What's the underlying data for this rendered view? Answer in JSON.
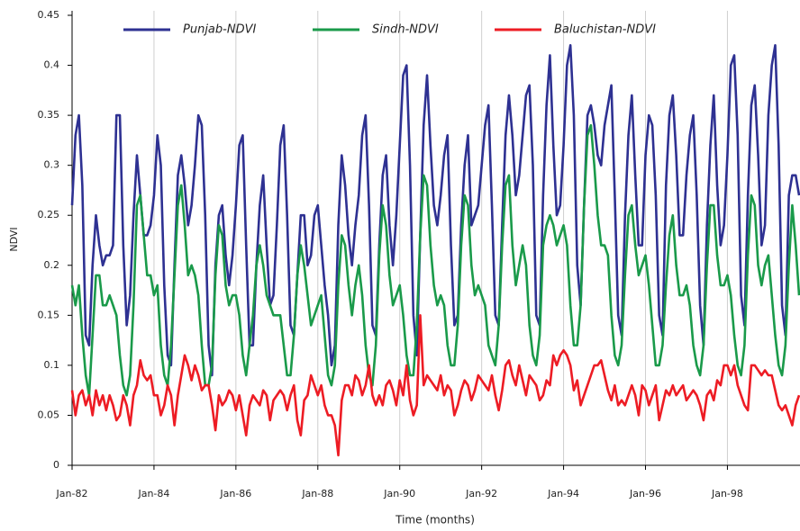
{
  "chart_data": {
    "type": "line",
    "y_label": "NDVI",
    "x_label": "Time (months)",
    "x": [
      "1982-01",
      "1982-02",
      "1982-03",
      "1982-04",
      "1982-05",
      "1982-06",
      "1982-07",
      "1982-08",
      "1982-09",
      "1982-10",
      "1982-11",
      "1982-12",
      "1983-01",
      "1983-02",
      "1983-03",
      "1983-04",
      "1983-05",
      "1983-06",
      "1983-07",
      "1983-08",
      "1983-09",
      "1983-10",
      "1983-11",
      "1983-12",
      "1984-01",
      "1984-02",
      "1984-03",
      "1984-04",
      "1984-05",
      "1984-06",
      "1984-07",
      "1984-08",
      "1984-09",
      "1984-10",
      "1984-11",
      "1984-12",
      "1985-01",
      "1985-02",
      "1985-03",
      "1985-04",
      "1985-05",
      "1985-06",
      "1985-07",
      "1985-08",
      "1985-09",
      "1985-10",
      "1985-11",
      "1985-12",
      "1986-01",
      "1986-02",
      "1986-03",
      "1986-04",
      "1986-05",
      "1986-06",
      "1986-07",
      "1986-08",
      "1986-09",
      "1986-10",
      "1986-11",
      "1986-12",
      "1987-01",
      "1987-02",
      "1987-03",
      "1987-04",
      "1987-05",
      "1987-06",
      "1987-07",
      "1987-08",
      "1987-09",
      "1987-10",
      "1987-11",
      "1987-12",
      "1988-01",
      "1988-02",
      "1988-03",
      "1988-04",
      "1988-05",
      "1988-06",
      "1988-07",
      "1988-08",
      "1988-09",
      "1988-10",
      "1988-11",
      "1988-12",
      "1989-01",
      "1989-02",
      "1989-03",
      "1989-04",
      "1989-05",
      "1989-06",
      "1989-07",
      "1989-08",
      "1989-09",
      "1989-10",
      "1989-11",
      "1989-12",
      "1990-01",
      "1990-02",
      "1990-03",
      "1990-04",
      "1990-05",
      "1990-06",
      "1990-07",
      "1990-08",
      "1990-09",
      "1990-10",
      "1990-11",
      "1990-12",
      "1991-01",
      "1991-02",
      "1991-03",
      "1991-04",
      "1991-05",
      "1991-06",
      "1991-07",
      "1991-08",
      "1991-09",
      "1991-10",
      "1991-11",
      "1991-12",
      "1992-01",
      "1992-02",
      "1992-03",
      "1992-04",
      "1992-05",
      "1992-06",
      "1992-07",
      "1992-08",
      "1992-09",
      "1992-10",
      "1992-11",
      "1992-12",
      "1993-01",
      "1993-02",
      "1993-03",
      "1993-04",
      "1993-05",
      "1993-06",
      "1993-07",
      "1993-08",
      "1993-09",
      "1993-10",
      "1993-11",
      "1993-12",
      "1994-01",
      "1994-02",
      "1994-03",
      "1994-04",
      "1994-05",
      "1994-06",
      "1994-07",
      "1994-08",
      "1994-09",
      "1994-10",
      "1994-11",
      "1994-12",
      "1995-01",
      "1995-02",
      "1995-03",
      "1995-04",
      "1995-05",
      "1995-06",
      "1995-07",
      "1995-08",
      "1995-09",
      "1995-10",
      "1995-11",
      "1995-12",
      "1996-01",
      "1996-02",
      "1996-03",
      "1996-04",
      "1996-05",
      "1996-06",
      "1996-07",
      "1996-08",
      "1996-09",
      "1996-10",
      "1996-11",
      "1996-12",
      "1997-01",
      "1997-02",
      "1997-03",
      "1997-04",
      "1997-05",
      "1997-06",
      "1997-07",
      "1997-08",
      "1997-09",
      "1997-10",
      "1997-11",
      "1997-12",
      "1998-01",
      "1998-02",
      "1998-03",
      "1998-04",
      "1998-05",
      "1998-06",
      "1998-07",
      "1998-08",
      "1998-09",
      "1998-10",
      "1998-11",
      "1998-12",
      "1999-01",
      "1999-02",
      "1999-03",
      "1999-04",
      "1999-05",
      "1999-06",
      "1999-07",
      "1999-08",
      "1999-09",
      "1999-10"
    ],
    "series": [
      {
        "name": "Punjab-NDVI",
        "color": "#2e3192",
        "values": [
          0.26,
          0.33,
          0.35,
          0.28,
          0.13,
          0.12,
          0.2,
          0.25,
          0.22,
          0.2,
          0.21,
          0.21,
          0.22,
          0.35,
          0.35,
          0.22,
          0.14,
          0.17,
          0.25,
          0.31,
          0.27,
          0.23,
          0.23,
          0.24,
          0.27,
          0.33,
          0.3,
          0.18,
          0.11,
          0.1,
          0.2,
          0.29,
          0.31,
          0.28,
          0.24,
          0.26,
          0.3,
          0.35,
          0.34,
          0.25,
          0.12,
          0.09,
          0.2,
          0.25,
          0.26,
          0.21,
          0.18,
          0.21,
          0.26,
          0.32,
          0.33,
          0.22,
          0.12,
          0.12,
          0.2,
          0.26,
          0.29,
          0.22,
          0.16,
          0.17,
          0.24,
          0.32,
          0.34,
          0.25,
          0.14,
          0.13,
          0.19,
          0.25,
          0.25,
          0.2,
          0.21,
          0.25,
          0.26,
          0.22,
          0.18,
          0.15,
          0.1,
          0.12,
          0.24,
          0.31,
          0.28,
          0.23,
          0.2,
          0.24,
          0.27,
          0.33,
          0.35,
          0.26,
          0.14,
          0.13,
          0.22,
          0.29,
          0.31,
          0.24,
          0.2,
          0.25,
          0.32,
          0.39,
          0.4,
          0.3,
          0.15,
          0.11,
          0.23,
          0.34,
          0.39,
          0.32,
          0.26,
          0.24,
          0.27,
          0.31,
          0.33,
          0.22,
          0.14,
          0.15,
          0.24,
          0.3,
          0.33,
          0.24,
          0.25,
          0.26,
          0.3,
          0.34,
          0.36,
          0.26,
          0.15,
          0.14,
          0.24,
          0.33,
          0.37,
          0.33,
          0.27,
          0.29,
          0.33,
          0.37,
          0.38,
          0.3,
          0.15,
          0.14,
          0.27,
          0.36,
          0.41,
          0.32,
          0.25,
          0.26,
          0.32,
          0.4,
          0.42,
          0.35,
          0.2,
          0.16,
          0.26,
          0.35,
          0.36,
          0.34,
          0.31,
          0.3,
          0.34,
          0.36,
          0.38,
          0.27,
          0.15,
          0.13,
          0.25,
          0.33,
          0.37,
          0.29,
          0.22,
          0.22,
          0.31,
          0.35,
          0.34,
          0.27,
          0.15,
          0.13,
          0.28,
          0.35,
          0.37,
          0.31,
          0.23,
          0.23,
          0.29,
          0.33,
          0.35,
          0.27,
          0.16,
          0.12,
          0.24,
          0.32,
          0.37,
          0.28,
          0.22,
          0.24,
          0.31,
          0.4,
          0.41,
          0.33,
          0.17,
          0.14,
          0.27,
          0.36,
          0.38,
          0.31,
          0.22,
          0.24,
          0.35,
          0.4,
          0.42,
          0.32,
          0.16,
          0.13,
          0.27,
          0.29,
          0.29,
          0.27
        ]
      },
      {
        "name": "Sindh-NDVI",
        "color": "#1a9a4a",
        "values": [
          0.18,
          0.16,
          0.18,
          0.13,
          0.09,
          0.07,
          0.13,
          0.19,
          0.19,
          0.16,
          0.16,
          0.17,
          0.16,
          0.15,
          0.11,
          0.08,
          0.07,
          0.09,
          0.16,
          0.26,
          0.27,
          0.23,
          0.19,
          0.19,
          0.17,
          0.18,
          0.12,
          0.09,
          0.08,
          0.12,
          0.19,
          0.26,
          0.28,
          0.24,
          0.19,
          0.2,
          0.19,
          0.17,
          0.12,
          0.08,
          0.08,
          0.1,
          0.19,
          0.24,
          0.23,
          0.18,
          0.16,
          0.17,
          0.17,
          0.15,
          0.11,
          0.09,
          0.12,
          0.15,
          0.2,
          0.22,
          0.2,
          0.17,
          0.16,
          0.15,
          0.15,
          0.15,
          0.12,
          0.09,
          0.09,
          0.13,
          0.19,
          0.22,
          0.2,
          0.17,
          0.14,
          0.15,
          0.16,
          0.17,
          0.13,
          0.09,
          0.08,
          0.1,
          0.18,
          0.23,
          0.22,
          0.18,
          0.15,
          0.18,
          0.2,
          0.17,
          0.12,
          0.09,
          0.08,
          0.12,
          0.21,
          0.26,
          0.24,
          0.19,
          0.16,
          0.17,
          0.18,
          0.15,
          0.11,
          0.09,
          0.09,
          0.14,
          0.23,
          0.29,
          0.28,
          0.22,
          0.18,
          0.16,
          0.17,
          0.16,
          0.12,
          0.1,
          0.1,
          0.14,
          0.22,
          0.27,
          0.26,
          0.2,
          0.17,
          0.18,
          0.17,
          0.16,
          0.12,
          0.11,
          0.1,
          0.14,
          0.22,
          0.28,
          0.29,
          0.22,
          0.18,
          0.2,
          0.22,
          0.2,
          0.14,
          0.11,
          0.1,
          0.13,
          0.22,
          0.24,
          0.25,
          0.24,
          0.22,
          0.23,
          0.24,
          0.22,
          0.16,
          0.12,
          0.12,
          0.16,
          0.26,
          0.33,
          0.34,
          0.3,
          0.25,
          0.22,
          0.22,
          0.21,
          0.15,
          0.11,
          0.1,
          0.12,
          0.19,
          0.25,
          0.26,
          0.22,
          0.19,
          0.2,
          0.21,
          0.18,
          0.14,
          0.1,
          0.1,
          0.12,
          0.18,
          0.23,
          0.25,
          0.2,
          0.17,
          0.17,
          0.18,
          0.16,
          0.12,
          0.1,
          0.09,
          0.12,
          0.2,
          0.26,
          0.26,
          0.21,
          0.18,
          0.18,
          0.19,
          0.17,
          0.13,
          0.1,
          0.09,
          0.12,
          0.21,
          0.27,
          0.26,
          0.2,
          0.18,
          0.2,
          0.21,
          0.17,
          0.13,
          0.1,
          0.09,
          0.12,
          0.2,
          0.26,
          0.22,
          0.17
        ]
      },
      {
        "name": "Baluchistan-NDVI",
        "color": "#ed1c24",
        "values": [
          0.075,
          0.05,
          0.07,
          0.075,
          0.06,
          0.07,
          0.05,
          0.075,
          0.06,
          0.07,
          0.055,
          0.07,
          0.06,
          0.045,
          0.05,
          0.07,
          0.06,
          0.04,
          0.07,
          0.08,
          0.105,
          0.09,
          0.085,
          0.09,
          0.07,
          0.07,
          0.05,
          0.06,
          0.08,
          0.07,
          0.04,
          0.07,
          0.09,
          0.11,
          0.1,
          0.085,
          0.1,
          0.09,
          0.075,
          0.08,
          0.08,
          0.06,
          0.035,
          0.07,
          0.06,
          0.065,
          0.075,
          0.07,
          0.055,
          0.07,
          0.05,
          0.03,
          0.06,
          0.07,
          0.065,
          0.06,
          0.075,
          0.07,
          0.045,
          0.065,
          0.07,
          0.075,
          0.07,
          0.055,
          0.07,
          0.08,
          0.045,
          0.03,
          0.065,
          0.07,
          0.09,
          0.08,
          0.07,
          0.08,
          0.06,
          0.05,
          0.05,
          0.04,
          0.01,
          0.065,
          0.08,
          0.08,
          0.07,
          0.09,
          0.085,
          0.07,
          0.08,
          0.1,
          0.07,
          0.06,
          0.07,
          0.06,
          0.08,
          0.085,
          0.075,
          0.06,
          0.085,
          0.07,
          0.1,
          0.065,
          0.05,
          0.06,
          0.15,
          0.08,
          0.09,
          0.085,
          0.08,
          0.075,
          0.09,
          0.07,
          0.08,
          0.075,
          0.05,
          0.06,
          0.075,
          0.085,
          0.08,
          0.065,
          0.075,
          0.09,
          0.085,
          0.08,
          0.075,
          0.09,
          0.07,
          0.055,
          0.075,
          0.1,
          0.105,
          0.09,
          0.08,
          0.1,
          0.085,
          0.07,
          0.09,
          0.085,
          0.08,
          0.065,
          0.07,
          0.085,
          0.08,
          0.11,
          0.1,
          0.11,
          0.115,
          0.11,
          0.1,
          0.075,
          0.085,
          0.06,
          0.07,
          0.08,
          0.09,
          0.1,
          0.1,
          0.105,
          0.09,
          0.075,
          0.065,
          0.08,
          0.06,
          0.065,
          0.06,
          0.07,
          0.08,
          0.07,
          0.05,
          0.08,
          0.075,
          0.06,
          0.07,
          0.08,
          0.045,
          0.06,
          0.075,
          0.07,
          0.08,
          0.07,
          0.075,
          0.08,
          0.065,
          0.07,
          0.075,
          0.07,
          0.06,
          0.045,
          0.07,
          0.075,
          0.065,
          0.085,
          0.08,
          0.1,
          0.1,
          0.09,
          0.1,
          0.08,
          0.07,
          0.06,
          0.055,
          0.1,
          0.1,
          0.095,
          0.09,
          0.095,
          0.09,
          0.09,
          0.075,
          0.06,
          0.055,
          0.06,
          0.05,
          0.04,
          0.06,
          0.07
        ]
      }
    ],
    "xlim": [
      "1982-01",
      "1999-10"
    ],
    "xticks": [
      {
        "value": "1982-01",
        "label": "Jan-82"
      },
      {
        "value": "1984-01",
        "label": "Jan-84"
      },
      {
        "value": "1986-01",
        "label": "Jan-86"
      },
      {
        "value": "1988-01",
        "label": "Jan-88"
      },
      {
        "value": "1990-01",
        "label": "Jan-90"
      },
      {
        "value": "1992-01",
        "label": "Jan-92"
      },
      {
        "value": "1994-01",
        "label": "Jan-94"
      },
      {
        "value": "1996-01",
        "label": "Jan-96"
      },
      {
        "value": "1998-01",
        "label": "Jan-98"
      }
    ],
    "ylim": [
      0,
      0.45
    ],
    "yticks": [
      0,
      0.05,
      0.1,
      0.15,
      0.2,
      0.25,
      0.3,
      0.35,
      0.4,
      0.45
    ],
    "grid": "x"
  }
}
